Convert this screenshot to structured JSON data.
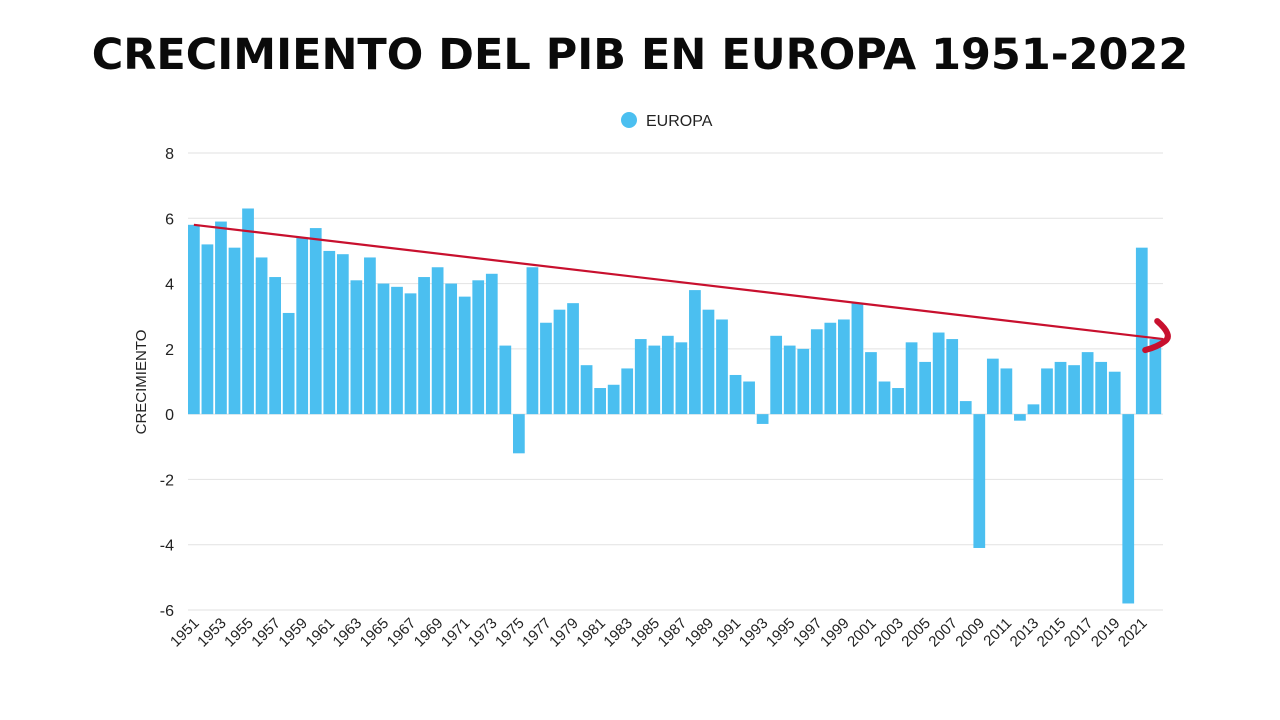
{
  "chart_data": {
    "type": "bar",
    "title": "CRECIMIENTO DEL PIB EN EUROPA 1951-2022",
    "xlabel": "",
    "ylabel": "CRECIMIENTO",
    "ylim": [
      -6,
      8
    ],
    "yticks": [
      8,
      6,
      4,
      2,
      0,
      -2,
      -4,
      -6
    ],
    "grid": true,
    "legend": {
      "position": "top-center",
      "entries": [
        "EUROPA"
      ]
    },
    "bar_color": "#4bbff0",
    "trend_color": "#c8102e",
    "categories": [
      "1951",
      "1952",
      "1953",
      "1954",
      "1955",
      "1956",
      "1957",
      "1958",
      "1959",
      "1960",
      "1961",
      "1962",
      "1963",
      "1964",
      "1965",
      "1966",
      "1967",
      "1968",
      "1969",
      "1970",
      "1971",
      "1972",
      "1973",
      "1974",
      "1975",
      "1976",
      "1977",
      "1978",
      "1979",
      "1980",
      "1981",
      "1982",
      "1983",
      "1984",
      "1985",
      "1986",
      "1987",
      "1988",
      "1989",
      "1990",
      "1991",
      "1992",
      "1993",
      "1994",
      "1995",
      "1996",
      "1997",
      "1998",
      "1999",
      "2000",
      "2001",
      "2002",
      "2003",
      "2004",
      "2005",
      "2006",
      "2007",
      "2008",
      "2009",
      "2010",
      "2011",
      "2012",
      "2013",
      "2014",
      "2015",
      "2016",
      "2017",
      "2018",
      "2019",
      "2020",
      "2021",
      "2022"
    ],
    "xtick_labels": [
      "1951",
      "1953",
      "1955",
      "1957",
      "1959",
      "1961",
      "1963",
      "1965",
      "1967",
      "1969",
      "1971",
      "1973",
      "1975",
      "1977",
      "1979",
      "1981",
      "1983",
      "1985",
      "1987",
      "1989",
      "1991",
      "1993",
      "1995",
      "1997",
      "1999",
      "2001",
      "2003",
      "2005",
      "2007",
      "2009",
      "2011",
      "2013",
      "2015",
      "2017",
      "2019",
      "2021"
    ],
    "series": [
      {
        "name": "EUROPA",
        "values": [
          5.8,
          5.2,
          5.9,
          5.1,
          6.3,
          4.8,
          4.2,
          3.1,
          5.4,
          5.7,
          5.0,
          4.9,
          4.1,
          4.8,
          4.0,
          3.9,
          3.7,
          4.2,
          4.5,
          4.0,
          3.6,
          4.1,
          4.3,
          2.1,
          -1.2,
          4.5,
          2.8,
          3.2,
          3.4,
          1.5,
          0.8,
          0.9,
          1.4,
          2.3,
          2.1,
          2.4,
          2.2,
          3.8,
          3.2,
          2.9,
          1.2,
          1.0,
          -0.3,
          2.4,
          2.1,
          2.0,
          2.6,
          2.8,
          2.9,
          3.4,
          1.9,
          1.0,
          0.8,
          2.2,
          1.6,
          2.5,
          2.3,
          0.4,
          -4.1,
          1.7,
          1.4,
          -0.2,
          0.3,
          1.4,
          1.6,
          1.5,
          1.9,
          1.6,
          1.3,
          -5.8,
          5.1,
          2.3
        ]
      }
    ],
    "annotations": [
      {
        "type": "trend-line",
        "from": {
          "x": "1951",
          "y": 5.8
        },
        "to": {
          "x": "2022",
          "y": 2.3
        },
        "arrow": "right"
      }
    ]
  }
}
